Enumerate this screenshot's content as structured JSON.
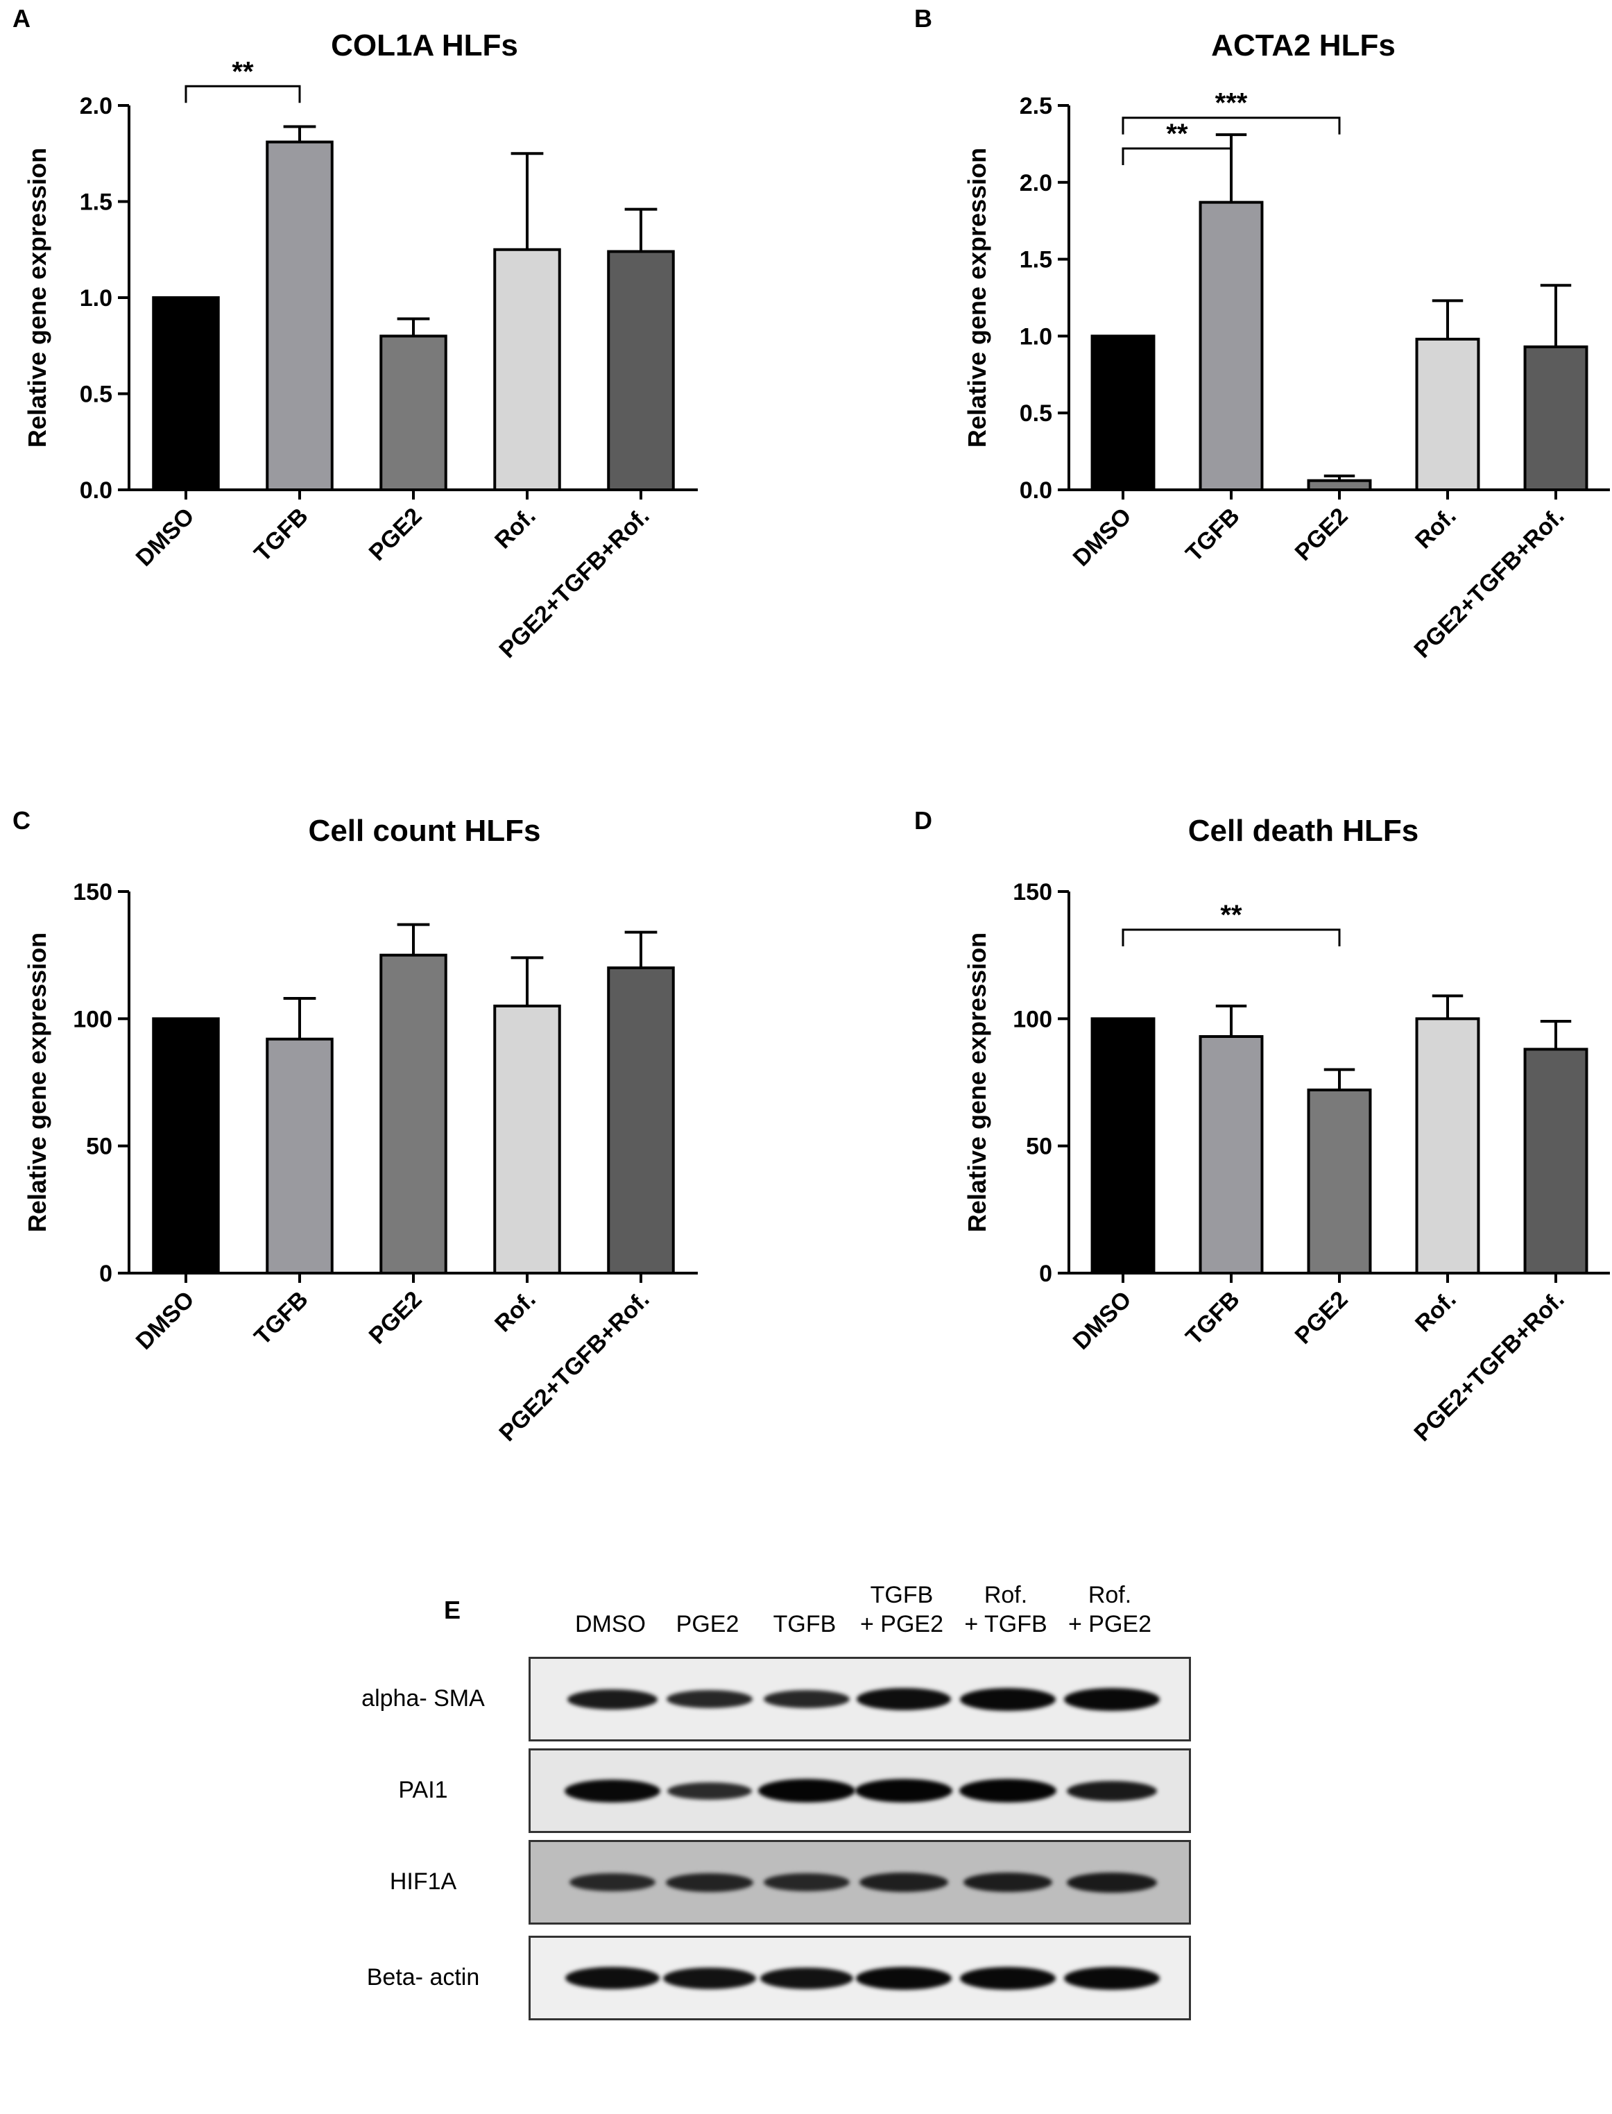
{
  "chart_data": [
    {
      "type": "bar",
      "panel": "A",
      "title": "COL1A HLFs",
      "ylabel": "Relative gene expression",
      "xlabel": "",
      "categories": [
        "DMSO",
        "TGFB",
        "PGE2",
        "Rof.",
        "PGE2+TGFB+Rof."
      ],
      "values": [
        1.0,
        1.81,
        0.8,
        1.25,
        1.24
      ],
      "errors": [
        0.0,
        0.08,
        0.09,
        0.5,
        0.22
      ],
      "colors": [
        "#000000",
        "#9a9a9f",
        "#7a7a7a",
        "#d6d6d6",
        "#5c5c5c"
      ],
      "ylim": [
        0,
        2.0
      ],
      "yticks": [
        "0.0",
        "0.5",
        "1.0",
        "1.5",
        "2.0"
      ],
      "significance": [
        {
          "from": 0,
          "to": 1,
          "label": "**",
          "level": 2.1
        }
      ]
    },
    {
      "type": "bar",
      "panel": "B",
      "title": "ACTA2 HLFs",
      "ylabel": "Relative gene expression",
      "xlabel": "",
      "categories": [
        "DMSO",
        "TGFB",
        "PGE2",
        "Rof.",
        "PGE2+TGFB+Rof."
      ],
      "values": [
        1.0,
        1.87,
        0.06,
        0.98,
        0.93
      ],
      "errors": [
        0.0,
        0.44,
        0.03,
        0.25,
        0.4
      ],
      "colors": [
        "#000000",
        "#9a9a9f",
        "#7a7a7a",
        "#d6d6d6",
        "#5c5c5c"
      ],
      "ylim": [
        0,
        2.5
      ],
      "yticks": [
        "0.0",
        "0.5",
        "1.0",
        "1.5",
        "2.0",
        "2.5"
      ],
      "significance": [
        {
          "from": 0,
          "to": 1,
          "label": "**",
          "level": 2.22
        },
        {
          "from": 0,
          "to": 2,
          "label": "***",
          "level": 2.42
        }
      ]
    },
    {
      "type": "bar",
      "panel": "C",
      "title": "Cell count HLFs",
      "ylabel": "Relative gene expression",
      "xlabel": "",
      "categories": [
        "DMSO",
        "TGFB",
        "PGE2",
        "Rof.",
        "PGE2+TGFB+Rof."
      ],
      "values": [
        100,
        92,
        125,
        105,
        120
      ],
      "errors": [
        0,
        16,
        12,
        19,
        14
      ],
      "colors": [
        "#000000",
        "#9a9a9f",
        "#7a7a7a",
        "#d6d6d6",
        "#5c5c5c"
      ],
      "ylim": [
        0,
        150
      ],
      "yticks": [
        "0",
        "50",
        "100",
        "150"
      ],
      "significance": []
    },
    {
      "type": "bar",
      "panel": "D",
      "title": "Cell death HLFs",
      "ylabel": "Relative gene expression",
      "xlabel": "",
      "categories": [
        "DMSO",
        "TGFB",
        "PGE2",
        "Rof.",
        "PGE2+TGFB+Rof."
      ],
      "values": [
        100,
        93,
        72,
        100,
        88
      ],
      "errors": [
        0,
        12,
        8,
        9,
        11
      ],
      "colors": [
        "#000000",
        "#9a9a9f",
        "#7a7a7a",
        "#d6d6d6",
        "#5c5c5c"
      ],
      "ylim": [
        0,
        150
      ],
      "yticks": [
        "0",
        "50",
        "100",
        "150"
      ],
      "significance": [
        {
          "from": 0,
          "to": 2,
          "label": "**",
          "level": 135
        }
      ]
    }
  ],
  "blot": {
    "panel": "E",
    "lanes": [
      {
        "line1": "",
        "line2": "DMSO"
      },
      {
        "line1": "",
        "line2": "PGE2"
      },
      {
        "line1": "",
        "line2": "TGFB"
      },
      {
        "line1": "TGFB",
        "line2": "+ PGE2"
      },
      {
        "line1": "Rof.",
        "line2": "+ TGFB"
      },
      {
        "line1": "Rof.",
        "line2": "+ PGE2"
      }
    ],
    "rows": [
      {
        "label": "alpha- SMA",
        "background": "#ededed",
        "intensities": [
          0.75,
          0.6,
          0.6,
          0.9,
          0.95,
          0.95
        ]
      },
      {
        "label": "PAI1",
        "background": "#e6e6e6",
        "intensities": [
          0.95,
          0.55,
          1.0,
          1.0,
          1.0,
          0.75
        ]
      },
      {
        "label": "HIF1A",
        "background": "#bdbdbd",
        "intensities": [
          0.6,
          0.65,
          0.6,
          0.7,
          0.72,
          0.75
        ]
      },
      {
        "label": "Beta- actin",
        "background": "#efefef",
        "intensities": [
          0.9,
          0.85,
          0.85,
          0.95,
          0.95,
          0.95
        ]
      }
    ]
  }
}
